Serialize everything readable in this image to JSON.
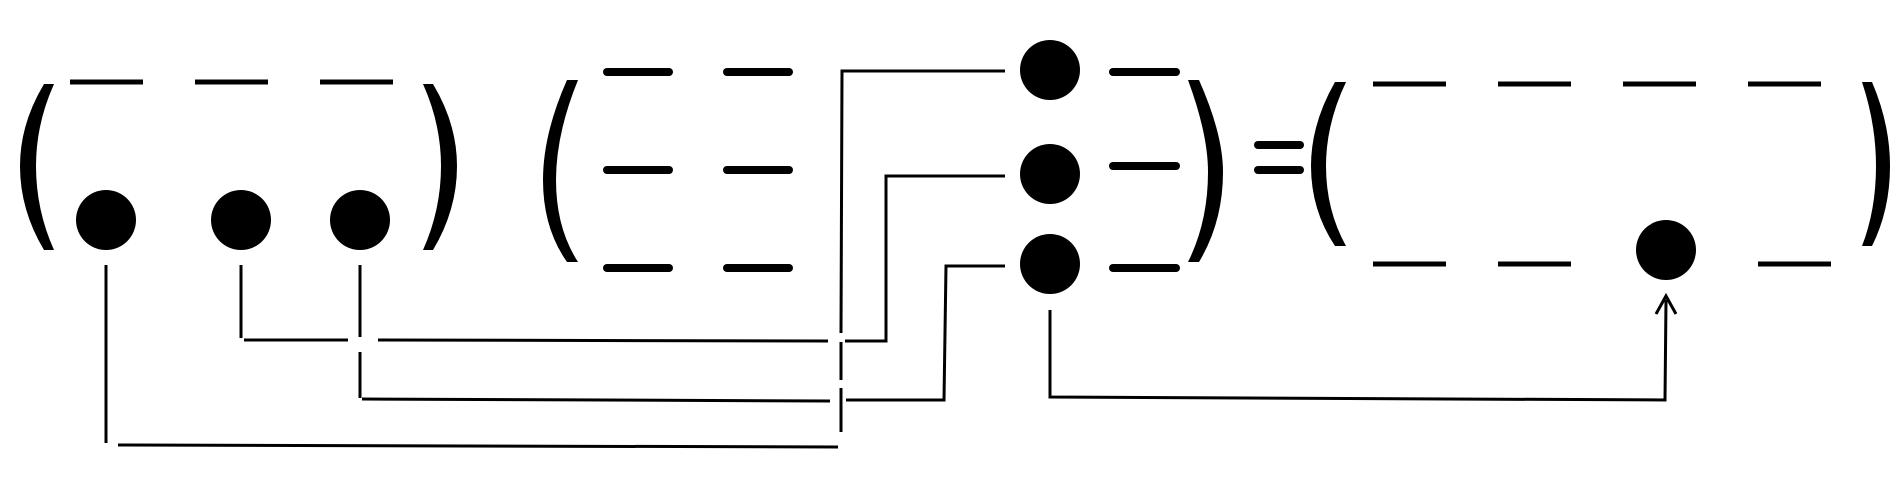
{
  "diagram": {
    "symbols": {
      "slot": "dash",
      "tensor": "circled-times",
      "equals": "="
    },
    "colors": {
      "ink": "#000000",
      "background": "#ffffff"
    },
    "left_tuple": {
      "top_row": [
        "dash",
        "dash",
        "dash"
      ],
      "bottom_row": [
        "circled-times",
        "circled-times",
        "circled-times"
      ]
    },
    "middle_matrix": {
      "rows": [
        [
          "dash",
          "dash",
          "circled-times",
          "dash"
        ],
        [
          "dash",
          "dash",
          "circled-times",
          "dash"
        ],
        [
          "dash",
          "dash",
          "circled-times",
          "dash"
        ]
      ]
    },
    "right_tuple": {
      "top_row": [
        "dash",
        "dash",
        "dash",
        "dash"
      ],
      "bottom_row": [
        "dash",
        "dash",
        "circled-times",
        "dash"
      ]
    },
    "connections": [
      {
        "from": "left-bottom-1",
        "to": "middle-column-3"
      },
      {
        "from": "left-bottom-2",
        "to": "middle-row-2-tensor"
      },
      {
        "from": "left-bottom-3",
        "to": "middle-row-3-tensor"
      },
      {
        "from": "middle-row-3-tensor",
        "to": "right-bottom-3",
        "arrow": true
      }
    ]
  }
}
